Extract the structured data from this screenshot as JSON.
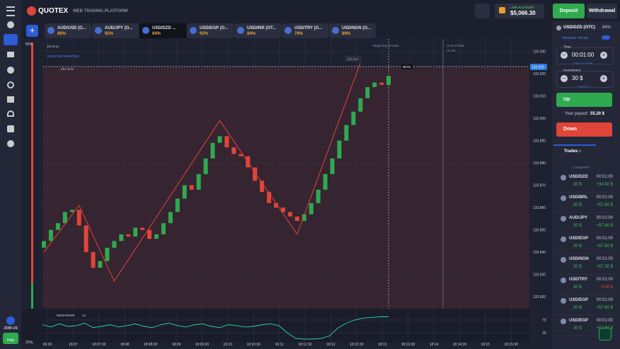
{
  "header": {
    "logo": "QUOTEX",
    "subtitle": "WEB TRADING PLATFORM",
    "account_type": "LIVE ACCOUNT",
    "balance": "$5,066.30",
    "deposit": "Deposit",
    "withdrawal": "Withdrawal"
  },
  "sidebar": {
    "join": "JOIN US",
    "help": "Help"
  },
  "tabs": [
    {
      "name": "AUD/USD (O...",
      "payout": "88%"
    },
    {
      "name": "AUD/JPY (O...",
      "payout": "92%"
    },
    {
      "name": "USD/DZD ...",
      "payout": "84%"
    },
    {
      "name": "USD/EGP (O...",
      "payout": "92%"
    },
    {
      "name": "USD/INR (OT...",
      "payout": "84%"
    },
    {
      "name": "USD/TRY (O...",
      "payout": "79%"
    },
    {
      "name": "USD/NGN (O...",
      "payout": "89%"
    }
  ],
  "chart_data": {
    "type": "candlestick",
    "clock": "18:13:14",
    "info": "YOUR INFORMATION",
    "indicator_name": "ZIG ZAG",
    "beginning": "Beginning of trade",
    "end": "End of trade",
    "end_time": "01:00",
    "open_marker": "133.921",
    "current_price": "133.925",
    "timer": "00:01",
    "balance_top": "80%",
    "balance_bottom": "20%",
    "ylim": [
      133.815,
      133.934
    ],
    "yticks": [
      {
        "value": 133.93,
        "label": "133.930"
      },
      {
        "value": 133.92,
        "label": "133.920"
      },
      {
        "value": 133.91,
        "label": "133.910"
      },
      {
        "value": 133.9,
        "label": "133.900"
      },
      {
        "value": 133.89,
        "label": "133.890"
      },
      {
        "value": 133.88,
        "label": "133.880"
      },
      {
        "value": 133.87,
        "label": "133.870"
      },
      {
        "value": 133.86,
        "label": "133.860"
      },
      {
        "value": 133.85,
        "label": "133.850"
      },
      {
        "value": 133.84,
        "label": "133.840"
      },
      {
        "value": 133.83,
        "label": "133.830"
      },
      {
        "value": 133.82,
        "label": "133.820"
      }
    ],
    "xticks": [
      "06:30",
      "18:07",
      "18:07:30",
      "18:08",
      "18:08:30",
      "18:09",
      "18:09:30",
      "18:10",
      "18:10:30",
      "18:11",
      "18:11:30",
      "18:12",
      "18:12:30",
      "18:13",
      "18:13:30",
      "18:14",
      "18:14:30",
      "18:15",
      "18:15:30"
    ],
    "open": [
      133.842,
      133.845,
      133.85,
      133.853,
      133.858,
      133.859,
      133.852,
      133.84,
      133.833,
      133.836,
      133.842,
      133.845,
      133.848,
      133.847,
      133.851,
      133.85,
      133.846,
      133.848,
      133.853,
      133.858,
      133.864,
      133.87,
      133.868,
      133.875,
      133.882,
      133.889,
      133.892,
      133.887,
      133.884,
      133.883,
      133.878,
      133.872,
      133.867,
      133.862,
      133.86,
      133.858,
      133.856,
      133.854,
      133.857,
      133.862,
      133.868,
      133.875,
      133.882,
      133.89,
      133.897,
      133.903,
      133.909,
      133.914,
      133.916,
      133.915
    ],
    "close": [
      133.845,
      133.85,
      133.853,
      133.858,
      133.859,
      133.852,
      133.84,
      133.833,
      133.836,
      133.842,
      133.845,
      133.848,
      133.847,
      133.851,
      133.85,
      133.846,
      133.848,
      133.853,
      133.858,
      133.864,
      133.87,
      133.868,
      133.875,
      133.882,
      133.889,
      133.892,
      133.887,
      133.884,
      133.883,
      133.878,
      133.872,
      133.867,
      133.862,
      133.86,
      133.858,
      133.856,
      133.854,
      133.857,
      133.862,
      133.868,
      133.875,
      133.882,
      133.89,
      133.897,
      133.903,
      133.909,
      133.914,
      133.916,
      133.915,
      133.919
    ],
    "zigzag": {
      "index": [
        0,
        5,
        10,
        25,
        36,
        45
      ],
      "values": [
        133.84,
        133.861,
        133.827,
        133.899,
        133.848,
        133.925
      ]
    },
    "oscillator": {
      "name": "DEMARKER",
      "period": "14",
      "ylim": [
        0,
        100
      ],
      "yticks": [
        70,
        30
      ],
      "values": [
        55,
        48,
        58,
        50,
        52,
        60,
        46,
        50,
        55,
        48,
        52,
        58,
        50,
        46,
        55,
        60,
        52,
        48,
        55,
        58,
        50,
        46,
        55,
        52,
        48,
        50,
        55,
        58,
        52,
        30,
        12,
        10,
        10,
        12,
        20,
        45,
        60,
        70,
        76,
        78,
        80,
        80
      ]
    }
  },
  "panel": {
    "asset": "USD/DZD (OTC)",
    "payout": "84%",
    "pending": "PENDING TRADE",
    "time_label": "Time",
    "time": "00:01:00",
    "switch_time": "SWITCH TIME",
    "investment_label": "Investment",
    "investment": "30 $",
    "switch": "SWITCH",
    "up": "Up",
    "payout_label": "Your payout:",
    "payout_value": "55.20 $",
    "down": "Down",
    "trades": "Trades",
    "trades_count": "0",
    "date": "1 JANUARY",
    "rows": [
      {
        "asset": "USD/DZD",
        "time": "00:01:00",
        "amount": "30 $",
        "result": "+34.50 $"
      },
      {
        "asset": "USD/BRL",
        "time": "00:01:00",
        "amount": "30 $",
        "result": "+57.60 $"
      },
      {
        "asset": "AUD/JPY",
        "time": "00:01:00",
        "amount": "30 $",
        "result": "+57.60 $"
      },
      {
        "asset": "USD/EGP",
        "time": "00:01:00",
        "amount": "30 $",
        "result": "+57.60 $"
      },
      {
        "asset": "USD/NGN",
        "time": "00:01:00",
        "amount": "30 $",
        "result": "+57.30 $"
      },
      {
        "asset": "USD/TRY",
        "time": "00:01:00",
        "amount": "30 $",
        "result": "0.00 $"
      },
      {
        "asset": "USD/EGP",
        "time": "00:01:00",
        "amount": "30 $",
        "result": "+57.60 $"
      },
      {
        "asset": "USD/EGP",
        "time": "00:01:00",
        "amount": "30 $",
        "result": "+57.60 $"
      }
    ]
  }
}
